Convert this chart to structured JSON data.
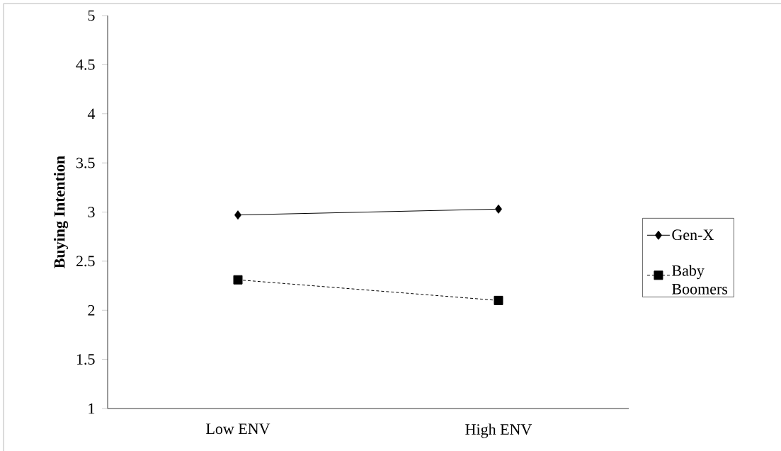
{
  "chart_data": {
    "type": "line",
    "ylabel": "Buying Intention",
    "categories": [
      "Low ENV",
      "High ENV"
    ],
    "series": [
      {
        "name": "Gen-X",
        "color": "#000000",
        "values": [
          2.97,
          3.03
        ],
        "marker": "diamond",
        "line_style": "solid"
      },
      {
        "name": "Baby Boomers",
        "color": "#000000",
        "values": [
          2.31,
          2.1
        ],
        "marker": "square",
        "line_style": "dashed"
      }
    ],
    "ylim": [
      1,
      5
    ],
    "yticks": [
      1,
      1.5,
      2,
      2.5,
      3,
      3.5,
      4,
      4.5,
      5
    ],
    "legend": "right"
  }
}
